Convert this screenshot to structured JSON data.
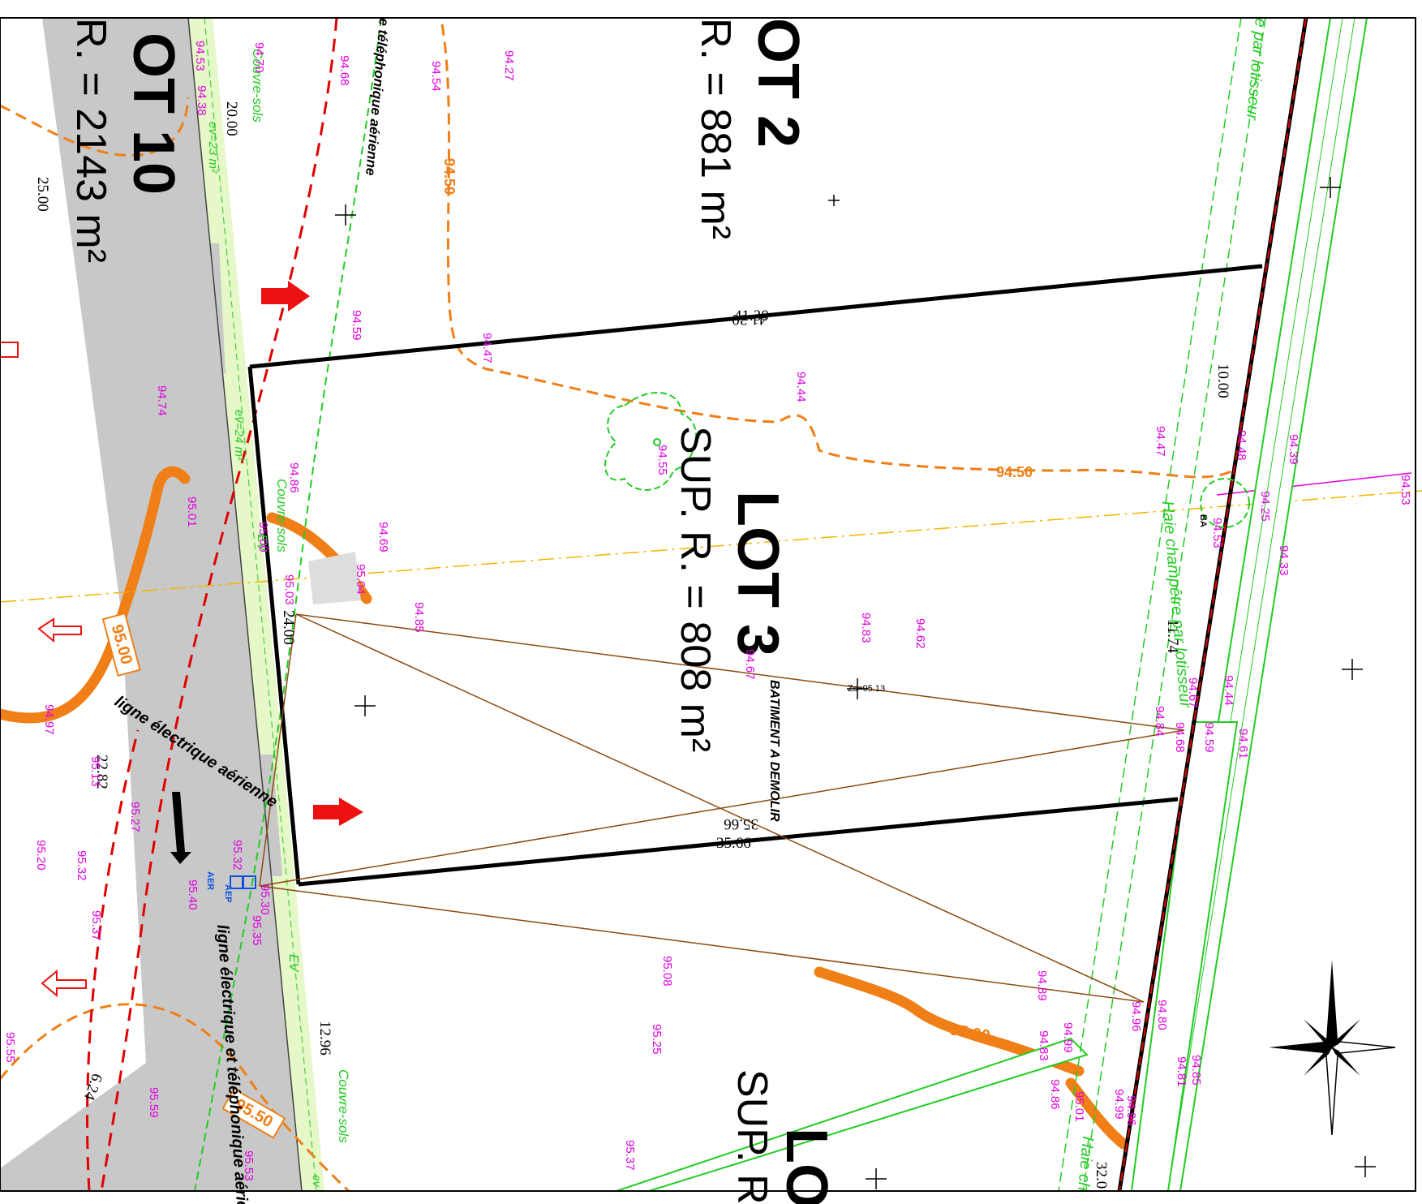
{
  "lots": {
    "lot10": {
      "title": "OT 10",
      "area": "R. = 2143 m²"
    },
    "lot2": {
      "title": "OT 2",
      "area": "R. = 881 m²"
    },
    "lot3": {
      "title": "LOT 3",
      "area": "SUP. R. = 808 m²"
    },
    "lot4": {
      "title": "LO",
      "area": "SUP. R"
    }
  },
  "building": {
    "label": "BATIMENT A DEMOLIR"
  },
  "altitude_point": {
    "label": "Zs=95.13"
  },
  "dimensions": {
    "d1": "25.00",
    "d2": "20.00",
    "d3": "41.30",
    "d4": "41.30",
    "d5": "10.00",
    "d6": "11.74",
    "d7": "24.00",
    "d8": "35.66",
    "d9": "35.66",
    "d10": "22.82",
    "d11": "12.96",
    "d12": "6.24",
    "d13": "32.0"
  },
  "contours": {
    "c1": "94.50",
    "c2": "94.50",
    "c3": "95.00",
    "c4": "95.00",
    "c5": "95.50"
  },
  "elevations": {
    "e1": "94.27",
    "e2": "94.54",
    "e3": "94.68",
    "e4": "94.70",
    "e5": "94.53",
    "e6": "94.38",
    "e7": "94.59",
    "e8": "94.47",
    "e9": "94.44",
    "e10": "94.74",
    "e11": "94.55",
    "e12": "94.47",
    "e13": "94.48",
    "e14": "94.39",
    "e15": "94.86",
    "e16": "94.69",
    "e17": "95.00",
    "e18": "95.03",
    "e19": "95.04",
    "e20": "94.85",
    "e21": "94.83",
    "e22": "94.62",
    "e23": "94.67",
    "e24": "95.01",
    "e25": "94.25",
    "e26": "94.53",
    "e27": "94.33",
    "e28": "94.53",
    "e29": "94.44",
    "e30": "94.61",
    "e31": "94.67",
    "e32": "94.68",
    "e33": "94.59",
    "e34": "94.97",
    "e35": "95.13",
    "e36": "95.27",
    "e37": "95.20",
    "e38": "95.32",
    "e39": "95.37",
    "e40": "95.32",
    "e41": "95.40",
    "e42": "95.30",
    "e43": "95.35",
    "e44": "95.08",
    "e45": "95.25",
    "e46": "94.89",
    "e47": "94.99",
    "e48": "94.83",
    "e49": "94.86",
    "e50": "95.01",
    "e51": "94.96",
    "e52": "94.80",
    "e53": "94.81",
    "e54": "94.85",
    "e55": "94.99",
    "e56": "94.96",
    "e57": "95.55",
    "e58": "95.59",
    "e59": "95.53",
    "e60": "95.37",
    "e61": "94.84"
  },
  "green_labels": {
    "couvre1": "Couvre-sols",
    "couvre2": "Couvre-sols",
    "couvre3": "Couvre-sols",
    "ev1": "ev=23 m²",
    "ev2": "ev=24 m²",
    "ev3": "EV",
    "ev4": "EV",
    "ev5": "ev",
    "haie1": "Haie champêtre par lotisseur",
    "haie2": "e par lotisseur",
    "haie3": "Haie ch"
  },
  "networks": {
    "n1": "e téléphonique aérienne",
    "n2": "ligne électrique aérienne",
    "n3": "ligne électrique et téléphonique aérienne",
    "aep": "AEP",
    "aer": "AER",
    "ba": "BA"
  },
  "colors": {
    "elevation": "#e000e0",
    "contour": "#f07f17",
    "road": "#c8c8c8",
    "green_strip": "#e6f7c8",
    "hedge": "#22cc22",
    "power_line": "#e00000",
    "arrow": "#ee1111",
    "triangulation": "#8b4a10",
    "axis": "#f5b400"
  },
  "icons": {
    "compass": "north-arrow-icon",
    "access": "access-arrow-icon"
  }
}
